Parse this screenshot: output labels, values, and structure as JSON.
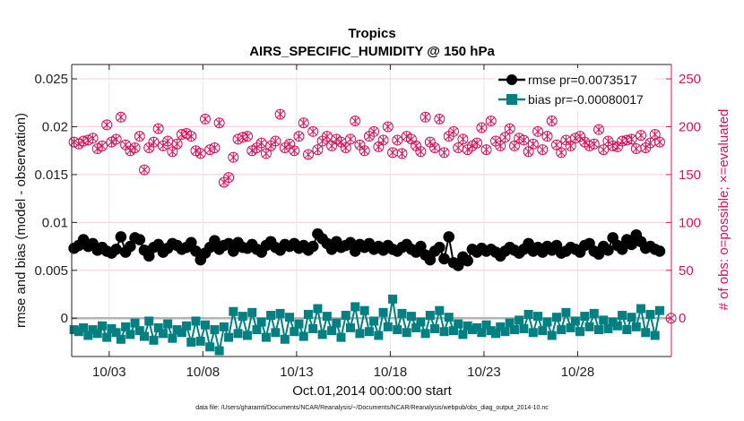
{
  "chart_data": {
    "type": "line",
    "title": "Tropics",
    "subtitle": "AIRS_SPECIFIC_HUMIDITY @ 150 hPa",
    "xlabel": "Oct.01,2014 00:00:00 start",
    "ylabel": "rmse and bias (model - observation)",
    "y2label": "# of obs: o=possible; ×=evaluated",
    "footnote": "data file: /Users/gharamti/Documents/NCAR/Reanalysis/~/Documents/NCAR/Reanalysis/webpub/obs_diag_output_2014-10.nc",
    "xlim": [
      1,
      33
    ],
    "ylim": [
      -0.004,
      0.0265
    ],
    "y2lim": [
      -40,
      265
    ],
    "x_ticks": [
      3,
      8,
      13,
      18,
      23,
      28
    ],
    "x_tick_labels": [
      "10/03",
      "10/08",
      "10/13",
      "10/18",
      "10/23",
      "10/28"
    ],
    "y_ticks": [
      0,
      0.005,
      0.01,
      0.015,
      0.02,
      0.025
    ],
    "y_tick_labels": [
      "0",
      "0.005",
      "0.01",
      "0.015",
      "0.02",
      "0.025"
    ],
    "y2_ticks": [
      0,
      50,
      100,
      150,
      200,
      250
    ],
    "y2_tick_labels": [
      "0",
      "50",
      "100",
      "150",
      "200",
      "250"
    ],
    "grid": true,
    "legend_position": "top-right",
    "colors": {
      "rmse": "#000000",
      "bias": "#008080",
      "obs": "#d4145a",
      "zero": "#b4b4b4"
    },
    "series": [
      {
        "name": "rmse pr=0.0073517",
        "axis": "left",
        "marker": "circle",
        "step_days": 0.25,
        "start_day": 1.125,
        "values": [
          0.0073,
          0.0076,
          0.0082,
          0.0075,
          0.0078,
          0.0071,
          0.0074,
          0.007,
          0.0068,
          0.0072,
          0.0085,
          0.0069,
          0.0075,
          0.0084,
          0.0082,
          0.0071,
          0.0065,
          0.0074,
          0.0077,
          0.0069,
          0.0073,
          0.0078,
          0.0076,
          0.0072,
          0.0074,
          0.0079,
          0.007,
          0.0061,
          0.0068,
          0.0074,
          0.0081,
          0.0072,
          0.0076,
          0.0078,
          0.007,
          0.0079,
          0.0074,
          0.0073,
          0.0077,
          0.0072,
          0.0069,
          0.0076,
          0.008,
          0.0074,
          0.0071,
          0.0077,
          0.0075,
          0.0078,
          0.0073,
          0.0076,
          0.0071,
          0.0075,
          0.0088,
          0.0083,
          0.0078,
          0.0072,
          0.008,
          0.0074,
          0.0076,
          0.0079,
          0.007,
          0.0077,
          0.0074,
          0.0078,
          0.0072,
          0.0075,
          0.0071,
          0.0076,
          0.0072,
          0.007,
          0.0074,
          0.0077,
          0.0072,
          0.0069,
          0.0075,
          0.0066,
          0.0061,
          0.007,
          0.0074,
          0.0062,
          0.0085,
          0.0058,
          0.0055,
          0.0064,
          0.006,
          0.0072,
          0.0069,
          0.0073,
          0.007,
          0.0072,
          0.0069,
          0.0065,
          0.007,
          0.0074,
          0.0071,
          0.0068,
          0.0072,
          0.0078,
          0.007,
          0.0074,
          0.0069,
          0.0075,
          0.0071,
          0.0076,
          0.0068,
          0.007,
          0.0074,
          0.0072,
          0.0069,
          0.0076,
          0.0078,
          0.007,
          0.0067,
          0.0075,
          0.0071,
          0.0084,
          0.0076,
          0.0072,
          0.0082,
          0.0077,
          0.0087,
          0.008,
          0.0073,
          0.0075,
          0.0072,
          0.007
        ]
      },
      {
        "name": "bias pr=-0.00080017",
        "axis": "left",
        "marker": "square",
        "step_days": 0.25,
        "start_day": 1.125,
        "values": [
          -0.0012,
          -0.0014,
          -0.001,
          -0.0018,
          -0.0012,
          -0.0016,
          -0.0008,
          -0.002,
          -0.0011,
          -0.0015,
          -0.0022,
          -0.0009,
          -0.0017,
          -0.0005,
          -0.0013,
          -0.0019,
          -0.0003,
          -0.0023,
          -0.001,
          -0.0016,
          -0.0006,
          -0.0021,
          -0.0012,
          -0.0015,
          -0.0008,
          -0.0025,
          -0.0003,
          -0.0024,
          -0.0007,
          -0.003,
          -0.0012,
          -0.0034,
          -0.0009,
          -0.002,
          0.0007,
          -0.0016,
          0.0002,
          -0.0018,
          0.0006,
          -0.0012,
          -0.0004,
          -0.002,
          0.0003,
          -0.0015,
          0.0005,
          -0.0022,
          0.0001,
          -0.0014,
          -0.0006,
          -0.0019,
          0.0004,
          -0.0011,
          0.001,
          -0.0017,
          0.0002,
          -0.0013,
          -0.0005,
          -0.002,
          0.0003,
          -0.001,
          0.0012,
          -0.0016,
          0.0008,
          -0.0014,
          -0.0003,
          -0.0018,
          0.0006,
          -0.0009,
          0.002,
          -0.0012,
          0.0005,
          -0.0015,
          0.0002,
          -0.001,
          -0.0004,
          -0.0016,
          0.0003,
          -0.0011,
          0.0008,
          -0.0014,
          0.0001,
          -0.0013,
          -0.0006,
          -0.0017,
          -0.0008,
          -0.0012,
          -0.001,
          -0.0015,
          -0.0007,
          -0.0013,
          -0.0016,
          -0.0009,
          -0.0014,
          -0.0005,
          -0.0012,
          -0.0002,
          -0.0011,
          0.0004,
          -0.0015,
          0.0002,
          -0.0013,
          -0.0004,
          -0.0018,
          0.0001,
          -0.0012,
          0.0006,
          -0.001,
          -0.0003,
          -0.0014,
          0.0002,
          -0.0009,
          0.0005,
          -0.0012,
          -0.0002,
          -0.0011,
          -0.0004,
          -0.0008,
          0.0003,
          -0.0012,
          0.0001,
          -0.0009,
          0.001,
          -0.0015,
          0.0004,
          -0.0018,
          0.0008
        ]
      },
      {
        "name": "# obs possible",
        "axis": "right",
        "marker": "circle-open",
        "step_days": 0.25,
        "start_day": 1.125,
        "values": [
          184,
          182,
          185,
          186,
          188,
          177,
          180,
          202,
          184,
          187,
          210,
          181,
          175,
          178,
          190,
          155,
          178,
          184,
          198,
          180,
          185,
          174,
          182,
          192,
          193,
          190,
          175,
          172,
          208,
          176,
          178,
          204,
          142,
          147,
          168,
          187,
          189,
          190,
          175,
          178,
          183,
          172,
          180,
          185,
          213,
          178,
          182,
          175,
          190,
          204,
          171,
          195,
          176,
          185,
          190,
          180,
          187,
          184,
          178,
          187,
          206,
          181,
          175,
          190,
          195,
          179,
          186,
          200,
          173,
          186,
          172,
          190,
          187,
          180,
          174,
          210,
          184,
          178,
          208,
          173,
          190,
          195,
          178,
          187,
          176,
          180,
          183,
          199,
          176,
          206,
          185,
          180,
          189,
          198,
          180,
          188,
          186,
          174,
          182,
          195,
          176,
          190,
          206,
          181,
          173,
          186,
          180,
          188,
          190,
          184,
          180,
          182,
          197,
          176,
          185,
          180,
          179,
          185,
          186,
          187,
          177,
          191,
          178,
          183,
          192,
          184
        ]
      },
      {
        "name": "# obs evaluated",
        "axis": "right",
        "marker": "x",
        "note": "evaluated counts coincide with possible counts (markers overlap)"
      }
    ],
    "extra_points": [
      {
        "series": "# obs possible",
        "day": 32.98,
        "value": 0
      }
    ]
  }
}
